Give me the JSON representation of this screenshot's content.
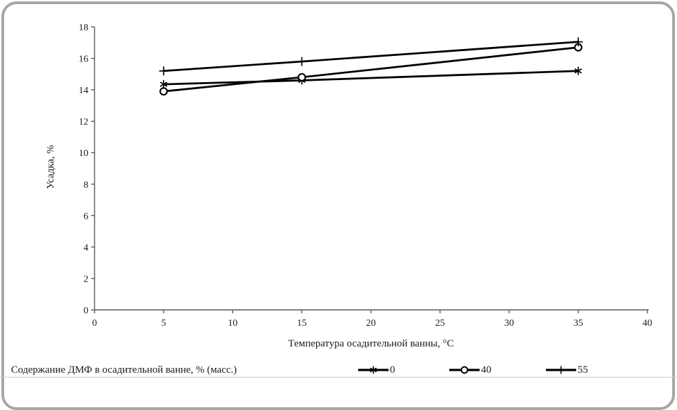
{
  "card": {
    "background": "#ffffff",
    "border_color": "#a6a6a6"
  },
  "chart_data": {
    "type": "line",
    "title": "",
    "xlabel": "Температура осадительной ванны, °С",
    "ylabel": "Усадка, %",
    "x": [
      5,
      15,
      35
    ],
    "series": [
      {
        "name": "0",
        "marker": "asterisk",
        "values": [
          14.35,
          14.6,
          15.2
        ]
      },
      {
        "name": "40",
        "marker": "circle",
        "values": [
          13.9,
          14.8,
          16.7
        ]
      },
      {
        "name": "55",
        "marker": "plus",
        "values": [
          15.2,
          15.8,
          17.05
        ]
      }
    ],
    "xlim": [
      0,
      40
    ],
    "ylim": [
      0,
      18
    ],
    "x_ticks": [
      0,
      5,
      10,
      15,
      20,
      25,
      30,
      35,
      40
    ],
    "y_ticks": [
      0,
      2,
      4,
      6,
      8,
      10,
      12,
      14,
      16,
      18
    ],
    "grid": false,
    "legend_position": "bottom",
    "line_color": "#000000",
    "axis_color": "#595959"
  },
  "legend": {
    "caption": "Содержание ДМФ в осадительной ванне, % (масс.)",
    "items": [
      {
        "label": "0",
        "marker": "asterisk"
      },
      {
        "label": "40",
        "marker": "circle"
      },
      {
        "label": "55",
        "marker": "plus"
      }
    ]
  }
}
